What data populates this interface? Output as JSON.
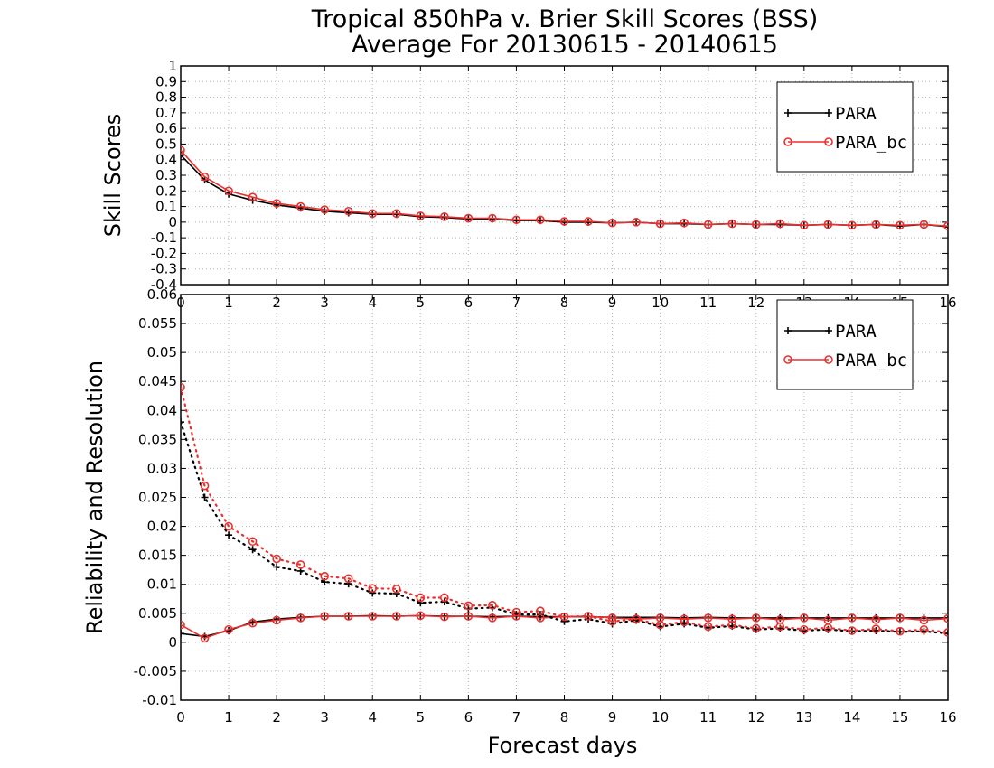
{
  "title_line1": "Tropical 850hPa v. Brier Skill Scores (BSS)",
  "title_line2": "Average For 20130615 - 20140615",
  "colors": {
    "PARA": "#000000",
    "PARA_bc": "#e8312e"
  },
  "chart_data": [
    {
      "type": "line",
      "panel": "top",
      "ylabel": "Skill Scores",
      "xlabel": "",
      "xlim": [
        0,
        16
      ],
      "ylim": [
        -0.4,
        1
      ],
      "x_ticks": [
        0,
        1,
        2,
        3,
        4,
        5,
        6,
        7,
        8,
        9,
        10,
        11,
        12,
        13,
        14,
        15,
        16
      ],
      "y_ticks": [
        -0.4,
        -0.3,
        -0.2,
        -0.1,
        0,
        0.1,
        0.2,
        0.3,
        0.4,
        0.5,
        0.6,
        0.7,
        0.8,
        0.9,
        1
      ],
      "y_tick_labels": [
        "-0.4",
        "-0.3",
        "-0.2",
        "-0.1",
        "0",
        "0.1",
        "0.2",
        "0.3",
        "0.4",
        "0.5",
        "0.6",
        "0.7",
        "0.8",
        "0.9",
        "1"
      ],
      "grid": true,
      "legend": {
        "position": "top-right",
        "entries": [
          "PARA",
          "PARA_bc"
        ]
      },
      "x": [
        0,
        0.5,
        1,
        1.5,
        2,
        2.5,
        3,
        3.5,
        4,
        4.5,
        5,
        5.5,
        6,
        6.5,
        7,
        7.5,
        8,
        8.5,
        9,
        9.5,
        10,
        10.5,
        11,
        11.5,
        12,
        12.5,
        13,
        13.5,
        14,
        14.5,
        15,
        15.5,
        16
      ],
      "series": [
        {
          "name": "PARA",
          "marker": "plus",
          "values": [
            0.43,
            0.27,
            0.18,
            0.14,
            0.11,
            0.09,
            0.07,
            0.06,
            0.05,
            0.05,
            0.035,
            0.03,
            0.02,
            0.02,
            0.01,
            0.01,
            0.0,
            0.0,
            -0.005,
            0.0,
            -0.01,
            -0.01,
            -0.015,
            -0.01,
            -0.015,
            -0.015,
            -0.02,
            -0.015,
            -0.02,
            -0.015,
            -0.025,
            -0.015,
            -0.03
          ]
        },
        {
          "name": "PARA_bc",
          "marker": "circle",
          "values": [
            0.46,
            0.29,
            0.2,
            0.16,
            0.12,
            0.1,
            0.08,
            0.07,
            0.055,
            0.055,
            0.04,
            0.035,
            0.025,
            0.025,
            0.015,
            0.015,
            0.005,
            0.005,
            -0.005,
            0.0,
            -0.01,
            -0.005,
            -0.015,
            -0.01,
            -0.015,
            -0.01,
            -0.02,
            -0.015,
            -0.02,
            -0.015,
            -0.02,
            -0.015,
            -0.025
          ]
        }
      ]
    },
    {
      "type": "line",
      "panel": "bottom",
      "ylabel": "Reliability and Resolution",
      "xlabel": "Forecast days",
      "xlim": [
        0,
        16
      ],
      "ylim": [
        -0.01,
        0.06
      ],
      "x_ticks": [
        0,
        1,
        2,
        3,
        4,
        5,
        6,
        7,
        8,
        9,
        10,
        11,
        12,
        13,
        14,
        15,
        16
      ],
      "y_ticks": [
        -0.01,
        -0.005,
        0,
        0.005,
        0.01,
        0.015,
        0.02,
        0.025,
        0.03,
        0.035,
        0.04,
        0.045,
        0.05,
        0.055,
        0.06
      ],
      "y_tick_labels": [
        "-0.01",
        "-0.005",
        "0",
        "0.005",
        "0.01",
        "0.015",
        "0.02",
        "0.025",
        "0.03",
        "0.035",
        "0.04",
        "0.045",
        "0.05",
        "0.055",
        "0.06"
      ],
      "grid": true,
      "legend": {
        "position": "top-right",
        "entries": [
          "PARA",
          "PARA_bc"
        ]
      },
      "x": [
        0,
        0.5,
        1,
        1.5,
        2,
        2.5,
        3,
        3.5,
        4,
        4.5,
        5,
        5.5,
        6,
        6.5,
        7,
        7.5,
        8,
        8.5,
        9,
        9.5,
        10,
        10.5,
        11,
        11.5,
        12,
        12.5,
        13,
        13.5,
        14,
        14.5,
        15,
        15.5,
        16
      ],
      "series": [
        {
          "name": "PARA",
          "kind": "reliability",
          "style": "solid",
          "marker": "plus",
          "values": [
            0.0015,
            0.001,
            0.002,
            0.0035,
            0.004,
            0.0043,
            0.0045,
            0.0045,
            0.0046,
            0.0045,
            0.0046,
            0.0045,
            0.0045,
            0.0044,
            0.0045,
            0.0044,
            0.0044,
            0.0044,
            0.0043,
            0.0043,
            0.0043,
            0.0042,
            0.0043,
            0.0042,
            0.0042,
            0.0042,
            0.0042,
            0.0042,
            0.0042,
            0.0042,
            0.0042,
            0.0042,
            0.0042
          ]
        },
        {
          "name": "PARA_bc",
          "kind": "reliability",
          "style": "solid",
          "marker": "circle",
          "values": [
            0.003,
            0.0007,
            0.0022,
            0.0033,
            0.0038,
            0.0042,
            0.0045,
            0.0045,
            0.0045,
            0.0045,
            0.0046,
            0.0044,
            0.0045,
            0.0042,
            0.0045,
            0.0042,
            0.0044,
            0.0045,
            0.0042,
            0.004,
            0.0042,
            0.004,
            0.0042,
            0.004,
            0.0042,
            0.0039,
            0.0042,
            0.0038,
            0.0042,
            0.0039,
            0.0042,
            0.0038,
            0.0041
          ]
        },
        {
          "name": "PARA",
          "kind": "resolution",
          "style": "dotted",
          "marker": "plus",
          "values": [
            0.038,
            0.025,
            0.0185,
            0.016,
            0.013,
            0.0123,
            0.0104,
            0.0101,
            0.0085,
            0.0084,
            0.0068,
            0.007,
            0.0058,
            0.006,
            0.0048,
            0.0048,
            0.0036,
            0.004,
            0.0032,
            0.0038,
            0.0027,
            0.0032,
            0.0025,
            0.0028,
            0.0022,
            0.0024,
            0.002,
            0.0022,
            0.0019,
            0.002,
            0.0018,
            0.0019,
            0.0015
          ]
        },
        {
          "name": "PARA_bc",
          "kind": "resolution",
          "style": "dotted",
          "marker": "circle",
          "values": [
            0.044,
            0.027,
            0.02,
            0.0174,
            0.0144,
            0.0134,
            0.0114,
            0.011,
            0.0093,
            0.0092,
            0.0077,
            0.0077,
            0.0063,
            0.0064,
            0.0052,
            0.0054,
            0.0044,
            0.0045,
            0.0036,
            0.004,
            0.003,
            0.0035,
            0.0027,
            0.003,
            0.0024,
            0.0027,
            0.0022,
            0.0025,
            0.002,
            0.0023,
            0.0019,
            0.0022,
            0.0017
          ]
        }
      ]
    }
  ]
}
